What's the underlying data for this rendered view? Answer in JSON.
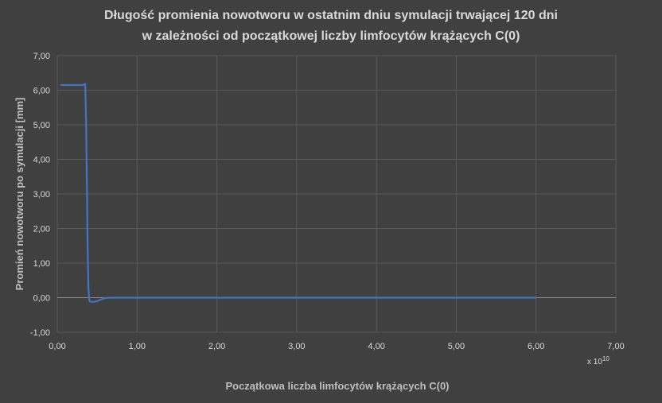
{
  "chart_data": {
    "type": "line",
    "title_line1": "Długość promienia nowotworu w ostatnim dniu symulacji trwającej 120 dni",
    "title_line2": "w zależności od początkowej liczby limfocytów krążących C(0)",
    "xlabel": "Początkowa liczba limfocytów krążących C(0)",
    "ylabel": "Promień nowotworu po symulacji [mm]",
    "x_multiplier_prefix": "x 10",
    "x_multiplier_exp": "10",
    "xlim": [
      0,
      7
    ],
    "ylim": [
      -1,
      7
    ],
    "x_ticks": [
      "0,00",
      "1,00",
      "2,00",
      "3,00",
      "4,00",
      "5,00",
      "6,00",
      "7,00"
    ],
    "y_ticks": [
      "-1,00",
      "0,00",
      "1,00",
      "2,00",
      "3,00",
      "4,00",
      "5,00",
      "6,00",
      "7,00"
    ],
    "grid": true,
    "legend": "none",
    "series": [
      {
        "color": "#4472c4",
        "x": [
          0.05,
          0.15,
          0.25,
          0.32,
          0.35,
          0.36,
          0.37,
          0.38,
          0.39,
          0.4,
          0.41,
          0.43,
          0.46,
          0.5,
          0.55,
          0.6,
          0.7,
          1.0,
          2.0,
          3.0,
          4.0,
          5.0,
          6.0
        ],
        "y": [
          6.15,
          6.15,
          6.15,
          6.15,
          6.18,
          5.2,
          3.5,
          1.5,
          0.3,
          -0.05,
          -0.11,
          -0.12,
          -0.12,
          -0.1,
          -0.05,
          -0.01,
          0.0,
          0.0,
          0.0,
          0.0,
          0.0,
          0.0,
          0.0
        ]
      }
    ]
  }
}
